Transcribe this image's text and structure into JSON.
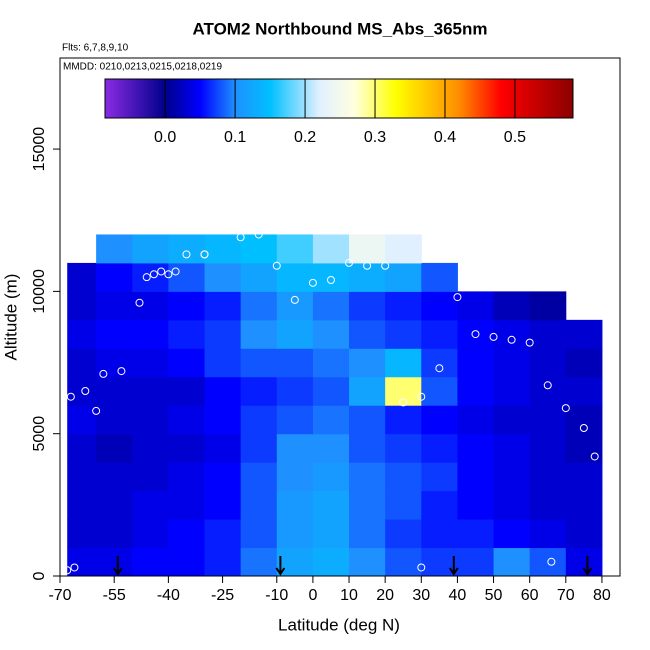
{
  "chart_data": {
    "type": "curtain",
    "title": "ATOM2 Northbound MS_Abs_365nm",
    "subtitle": "Flts: 6,7,8,9,10",
    "annotation": "MMDD: 0210,0213,0215,0218,0219",
    "xlabel": "Latitude (deg N)",
    "ylabel": "Altitude (m)",
    "xlim": [
      -70,
      85
    ],
    "ylim": [
      0,
      18200
    ],
    "xticks": [
      -70,
      -55,
      -40,
      -25,
      -10,
      0,
      10,
      20,
      30,
      40,
      50,
      60,
      70,
      80
    ],
    "yticks": [
      0,
      5000,
      10000,
      15000
    ],
    "x_edges": [
      -68,
      -60,
      -50,
      -40,
      -30,
      -20,
      -10,
      0,
      10,
      20,
      30,
      40,
      50,
      60,
      70,
      80
    ],
    "y_edges": [
      0,
      1000,
      2000,
      3000,
      4000,
      5000,
      6000,
      7000,
      8000,
      9000,
      10000,
      11000,
      12000
    ],
    "values": [
      [
        0.04,
        0.04,
        0.05,
        0.05,
        0.06,
        0.09,
        0.12,
        0.13,
        0.1,
        0.08,
        0.07,
        0.07,
        0.1,
        0.08,
        0.04
      ],
      [
        0.03,
        0.03,
        0.04,
        0.05,
        0.06,
        0.08,
        0.11,
        0.12,
        0.09,
        0.07,
        0.06,
        0.06,
        0.05,
        0.04,
        0.03
      ],
      [
        0.03,
        0.03,
        0.04,
        0.04,
        0.05,
        0.08,
        0.11,
        0.12,
        0.09,
        0.08,
        0.06,
        0.05,
        0.04,
        0.03,
        0.03
      ],
      [
        0.03,
        0.03,
        0.03,
        0.04,
        0.05,
        0.08,
        0.1,
        0.11,
        0.09,
        0.08,
        0.07,
        0.05,
        0.04,
        0.03,
        0.03
      ],
      [
        0.03,
        0.02,
        0.03,
        0.03,
        0.04,
        0.07,
        0.1,
        0.1,
        0.08,
        0.07,
        0.06,
        0.05,
        0.04,
        0.03,
        0.02
      ],
      [
        0.04,
        0.03,
        0.03,
        0.04,
        0.05,
        0.07,
        0.08,
        0.09,
        0.08,
        0.06,
        0.05,
        0.04,
        0.03,
        0.03,
        0.02
      ],
      [
        0.03,
        0.03,
        0.03,
        0.03,
        0.05,
        0.06,
        0.07,
        0.08,
        0.12,
        0.3,
        0.08,
        0.05,
        0.04,
        0.03,
        0.03
      ],
      [
        0.03,
        0.04,
        0.04,
        0.05,
        0.07,
        0.08,
        0.08,
        0.09,
        0.1,
        0.14,
        0.07,
        0.05,
        0.04,
        0.03,
        0.02
      ],
      [
        0.04,
        0.05,
        0.05,
        0.06,
        0.07,
        0.1,
        0.12,
        0.1,
        0.08,
        0.07,
        0.06,
        0.05,
        0.04,
        0.03,
        0.03
      ],
      [
        0.03,
        0.04,
        0.04,
        0.05,
        0.06,
        0.09,
        0.11,
        0.09,
        0.07,
        0.06,
        0.05,
        0.04,
        0.02,
        0.01,
        null
      ],
      [
        0.03,
        0.05,
        0.06,
        0.08,
        0.1,
        0.12,
        0.14,
        0.14,
        0.13,
        0.12,
        0.08,
        null,
        null,
        null,
        null
      ],
      [
        null,
        0.1,
        0.12,
        0.13,
        0.14,
        0.15,
        0.17,
        0.2,
        0.24,
        0.22,
        null,
        null,
        null,
        null,
        null
      ]
    ],
    "points": {
      "x": [
        -68,
        -67,
        -63,
        -60,
        -58,
        -53,
        -48,
        -46,
        -44,
        -42,
        -40,
        -38,
        -35,
        -30,
        -20,
        -15,
        -10,
        -5,
        0,
        5,
        10,
        15,
        20,
        25,
        30,
        35,
        40,
        45,
        50,
        55,
        60,
        65,
        70,
        75,
        78,
        -66,
        -30,
        30,
        66
      ],
      "y": [
        200,
        6300,
        6500,
        5800,
        7100,
        7200,
        9600,
        10500,
        10600,
        10700,
        10600,
        10700,
        11300,
        11300,
        11900,
        12000,
        10900,
        9700,
        10300,
        10400,
        11000,
        10900,
        10900,
        6100,
        6300,
        7300,
        9800,
        8500,
        8400,
        8300,
        8200,
        6700,
        5900,
        5200,
        4200,
        300,
        11300,
        300,
        500
      ]
    },
    "arrows": [
      -54,
      -9,
      39,
      76
    ],
    "colorbar": {
      "range": [
        -0.086,
        0.583
      ],
      "ticks": [
        {
          "value": 0,
          "label": "0.0"
        },
        0.1,
        0.2,
        0.3,
        0.4,
        0.5
      ]
    },
    "colorscale": [
      [
        -0.086,
        "#8a2be2"
      ],
      [
        0.0,
        "#00008b"
      ],
      [
        0.05,
        "#0000ff"
      ],
      [
        0.1,
        "#1e90ff"
      ],
      [
        0.15,
        "#00bfff"
      ],
      [
        0.22,
        "#e0f0ff"
      ],
      [
        0.27,
        "#ffffe0"
      ],
      [
        0.33,
        "#ffff00"
      ],
      [
        0.42,
        "#ff8c00"
      ],
      [
        0.48,
        "#ff0000"
      ],
      [
        0.583,
        "#8b0000"
      ]
    ]
  }
}
